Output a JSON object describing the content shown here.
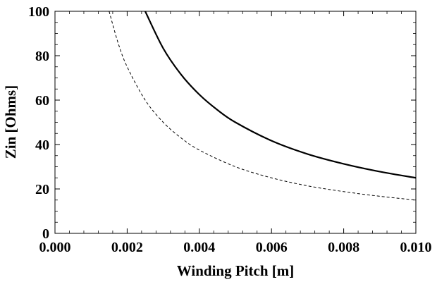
{
  "chart_data": {
    "type": "line",
    "title": "",
    "xlabel": "Winding Pitch [m]",
    "ylabel": "Zin [Ohms]",
    "xlim": [
      0.0,
      0.01
    ],
    "ylim": [
      0,
      100
    ],
    "x_ticks": [
      "0.000",
      "0.002",
      "0.004",
      "0.006",
      "0.008",
      "0.010"
    ],
    "y_ticks": [
      "0",
      "20",
      "40",
      "60",
      "80",
      "100"
    ],
    "grid": false,
    "legend": "none",
    "series": [
      {
        "name": "solid",
        "style": "solid",
        "color": "#000000",
        "x": [
          0.0025,
          0.003,
          0.0035,
          0.004,
          0.0045,
          0.005,
          0.006,
          0.007,
          0.008,
          0.009,
          0.01
        ],
        "y": [
          100,
          83.3,
          71.4,
          62.5,
          55.6,
          50.0,
          41.7,
          35.7,
          31.3,
          27.8,
          25.0
        ]
      },
      {
        "name": "dashed",
        "style": "dashed",
        "color": "#000000",
        "x": [
          0.0015,
          0.00175,
          0.002,
          0.0025,
          0.003,
          0.0035,
          0.004,
          0.005,
          0.006,
          0.007,
          0.008,
          0.009,
          0.01
        ],
        "y": [
          100,
          85.7,
          75.0,
          60.0,
          50.0,
          42.9,
          37.5,
          30.0,
          25.0,
          21.4,
          18.8,
          16.7,
          15.0
        ]
      }
    ]
  }
}
